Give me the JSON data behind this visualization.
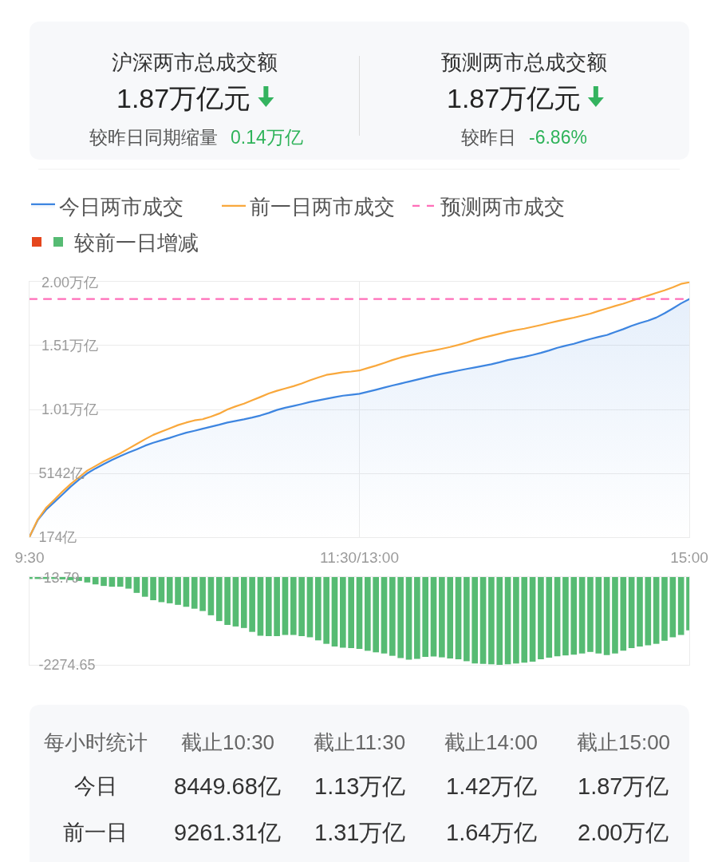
{
  "chart_data": [
    {
      "type": "other",
      "categories": [
        "沪深两市总成交额",
        "预测两市总成交额"
      ],
      "value_labels": [
        "1.87万亿元",
        "1.87万亿元"
      ],
      "annotations": [
        "较昨日同期缩量",
        "0.14万亿",
        "较昨日",
        "-6.86%"
      ]
    },
    {
      "type": "line",
      "categories": [
        "9:30",
        null,
        null,
        null,
        null,
        null,
        null,
        null,
        null,
        null,
        null,
        null,
        null,
        null,
        null,
        null,
        null,
        null,
        null,
        null,
        null,
        null,
        null,
        null,
        null,
        null,
        null,
        null,
        null,
        null,
        null,
        null,
        null,
        null,
        null,
        null,
        null,
        null,
        null,
        null,
        "11:30/13:00",
        null,
        null,
        null,
        null,
        null,
        null,
        null,
        null,
        null,
        null,
        null,
        null,
        null,
        null,
        null,
        null,
        null,
        null,
        null,
        null,
        null,
        null,
        null,
        null,
        null,
        null,
        null,
        null,
        null,
        null,
        null,
        null,
        null,
        null,
        null,
        null,
        null,
        null,
        null,
        "15:00"
      ],
      "ylim": [
        174,
        20046
      ],
      "yticks": [
        {
          "value": 174,
          "label": "174亿"
        },
        {
          "value": 5142,
          "label": "5142亿"
        }
      ],
      "y2lim": [
        0.0174,
        2.0046
      ],
      "y2ticks": [
        {
          "value": 1.01,
          "label": "1.01万亿"
        },
        {
          "value": 1.51,
          "label": "1.51万亿"
        },
        {
          "value": 2.0,
          "label": "2.00万亿"
        }
      ],
      "series": [
        {
          "name": "今日两市成交",
          "type": "area",
          "color": "#3d85e0",
          "values": [
            200,
            1500,
            2300,
            2900,
            3500,
            4110,
            4650,
            5140,
            5520,
            5860,
            6180,
            6480,
            6750,
            7010,
            7290,
            7520,
            7710,
            7900,
            8110,
            8300,
            8450,
            8610,
            8770,
            8920,
            9090,
            9220,
            9340,
            9480,
            9640,
            9840,
            10070,
            10240,
            10380,
            10530,
            10690,
            10820,
            10940,
            11060,
            11180,
            11250,
            11330,
            11480,
            11640,
            11810,
            11970,
            12120,
            12280,
            12430,
            12590,
            12740,
            12880,
            13010,
            13140,
            13260,
            13380,
            13500,
            13630,
            13780,
            13950,
            14080,
            14200,
            14350,
            14510,
            14700,
            14910,
            15070,
            15220,
            15410,
            15590,
            15750,
            15900,
            16130,
            16360,
            16610,
            16830,
            17020,
            17260,
            17590,
            17970,
            18360,
            18700
          ]
        },
        {
          "name": "前一日两市成交",
          "color": "#f9a83c",
          "values": [
            200,
            1550,
            2450,
            3080,
            3720,
            4310,
            4830,
            5350,
            5710,
            6070,
            6380,
            6690,
            7060,
            7420,
            7790,
            8130,
            8390,
            8640,
            8890,
            9090,
            9260,
            9350,
            9550,
            9790,
            10110,
            10350,
            10560,
            10820,
            11080,
            11350,
            11560,
            11740,
            11920,
            12130,
            12380,
            12590,
            12800,
            12900,
            13000,
            13060,
            13140,
            13330,
            13520,
            13730,
            13950,
            14150,
            14310,
            14450,
            14580,
            14700,
            14830,
            14970,
            15130,
            15310,
            15520,
            15690,
            15850,
            16000,
            16160,
            16290,
            16400,
            16540,
            16680,
            16830,
            16980,
            17120,
            17250,
            17410,
            17560,
            17770,
            17970,
            18160,
            18340,
            18560,
            18770,
            18970,
            19180,
            19380,
            19610,
            19880,
            20000
          ]
        }
      ],
      "ref_lines": [
        {
          "axis": "y2",
          "value": 1.87,
          "label": "预测两市成交",
          "color": "#ff6eb9",
          "line_style": "dashed"
        }
      ],
      "grid": true,
      "legend": "top left"
    },
    {
      "type": "bar",
      "categories": [
        null,
        null,
        null,
        null,
        null,
        null,
        null,
        null,
        null,
        null,
        null,
        null,
        null,
        null,
        null,
        null,
        null,
        null,
        null,
        null,
        null,
        null,
        null,
        null,
        null,
        null,
        null,
        null,
        null,
        null,
        null,
        null,
        null,
        null,
        null,
        null,
        null,
        null,
        null,
        null,
        null,
        null,
        null,
        null,
        null,
        null,
        null,
        null,
        null,
        null,
        null,
        null,
        null,
        null,
        null,
        null,
        null,
        null,
        null,
        null,
        null,
        null,
        null,
        null,
        null,
        null,
        null,
        null,
        null,
        null,
        null,
        null,
        null,
        null,
        null,
        null,
        null,
        null,
        null,
        null,
        null
      ],
      "ylim": [
        -2274.65,
        0
      ],
      "yticks": [
        -13.79,
        -2274.65
      ],
      "tick_labels": "y",
      "series": [
        {
          "name": "较前一日增减",
          "color": "#56bb73",
          "values": [
            -50,
            -50,
            -50,
            -50,
            -60,
            -80,
            -100,
            -140,
            -190,
            -230,
            -250,
            -250,
            -300,
            -410,
            -510,
            -600,
            -650,
            -680,
            -720,
            -770,
            -820,
            -880,
            -990,
            -1140,
            -1240,
            -1280,
            -1320,
            -1420,
            -1520,
            -1530,
            -1530,
            -1500,
            -1500,
            -1530,
            -1560,
            -1640,
            -1730,
            -1800,
            -1830,
            -1840,
            -1860,
            -1910,
            -1950,
            -1980,
            -2040,
            -2100,
            -2140,
            -2120,
            -2070,
            -2060,
            -2080,
            -2110,
            -2130,
            -2180,
            -2240,
            -2250,
            -2260,
            -2274.65,
            -2260,
            -2240,
            -2220,
            -2190,
            -2130,
            -2090,
            -2050,
            -2030,
            -2010,
            -1980,
            -1940,
            -1980,
            -2020,
            -1980,
            -1910,
            -1840,
            -1800,
            -1770,
            -1730,
            -1650,
            -1560,
            -1500,
            -1380
          ]
        }
      ],
      "legend": "top left"
    },
    {
      "type": "other",
      "title": "每小时统计",
      "categories": [
        "截止10:30",
        "截止11:30",
        "截止14:00",
        "截止15:00"
      ],
      "series": [
        {
          "name": "今日",
          "values": [
            8449.68,
            1.13,
            1.42,
            1.87
          ],
          "value_labels": [
            "8449.68亿",
            "1.13万亿",
            "1.42万亿",
            "1.87万亿"
          ]
        },
        {
          "name": "前一日",
          "values": [
            9261.31,
            1.31,
            1.64,
            2.0
          ],
          "value_labels": [
            "9261.31亿",
            "1.31万亿",
            "1.64万亿",
            "2.00万亿"
          ]
        }
      ]
    }
  ]
}
